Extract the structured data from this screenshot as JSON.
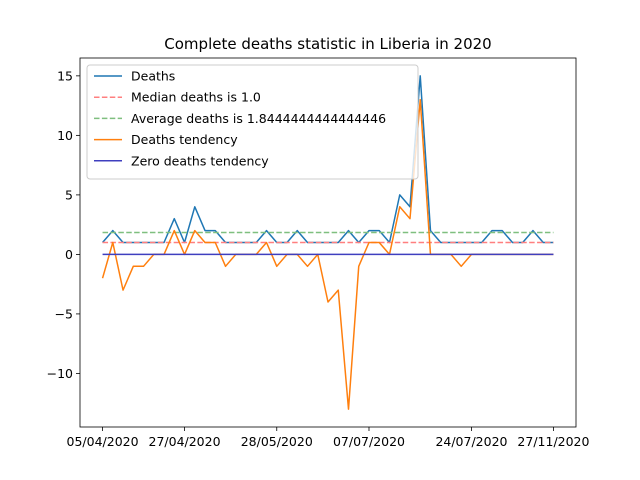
{
  "chart_data": {
    "type": "line",
    "title": "Complete deaths statistic in Liberia in 2020",
    "xlabel": "",
    "ylabel": "",
    "x_tick_labels": [
      "05/04/2020",
      "27/04/2020",
      "28/05/2020",
      "07/07/2020",
      "24/07/2020",
      "27/11/2020"
    ],
    "x_tick_positions": [
      0,
      8,
      17,
      26,
      36,
      44
    ],
    "xlim": [
      -2.2,
      46.2
    ],
    "ylim": [
      -14.5,
      16.5
    ],
    "y_ticks": [
      -10,
      -5,
      0,
      5,
      10,
      15
    ],
    "legend_position": "top-left",
    "series": [
      {
        "name": "Deaths",
        "style": "solid",
        "color": "#1f77b4",
        "values": [
          1,
          2,
          1,
          1,
          1,
          1,
          1,
          3,
          1,
          4,
          2,
          2,
          1,
          1,
          1,
          1,
          2,
          1,
          1,
          2,
          1,
          1,
          1,
          1,
          2,
          1,
          2,
          2,
          1,
          5,
          4,
          15,
          2,
          1,
          1,
          1,
          1,
          1,
          2,
          2,
          1,
          1,
          2,
          1,
          1
        ]
      },
      {
        "name": "Median deaths is 1.0",
        "style": "dashed",
        "color": "#ff7f7f",
        "constant": 1.0
      },
      {
        "name": "Average deaths is 1.8444444444444446",
        "style": "dashed",
        "color": "#7fbf7f",
        "constant": 1.8444444444444446
      },
      {
        "name": "Deaths tendency",
        "style": "solid",
        "color": "#ff7f0e",
        "values": [
          -2,
          1,
          -3,
          -1,
          -1,
          0,
          0,
          2,
          0,
          2,
          1,
          1,
          -1,
          0,
          0,
          0,
          1,
          -1,
          0,
          0,
          -1,
          0,
          -4,
          -3,
          -13,
          -1,
          1,
          1,
          0,
          4,
          3,
          13,
          0,
          0,
          0,
          -1,
          0,
          0,
          0,
          0,
          0,
          0,
          0,
          0,
          0
        ]
      },
      {
        "name": "Zero deaths tendency",
        "style": "solid",
        "color": "#3f3fbf",
        "constant": 0
      }
    ]
  }
}
